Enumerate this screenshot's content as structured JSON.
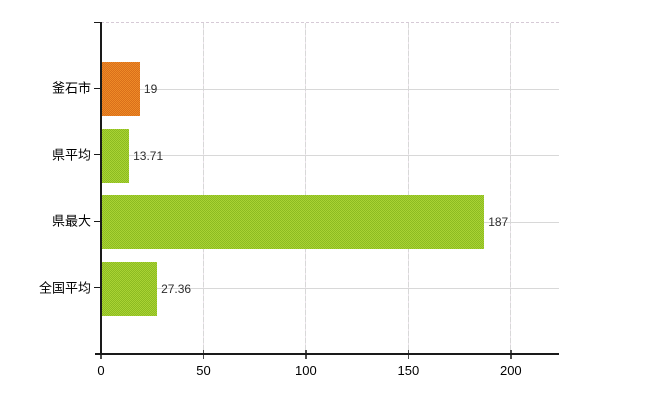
{
  "chart_data": {
    "type": "bar",
    "orientation": "horizontal",
    "title": "",
    "categories": [
      "釜石市",
      "県平均",
      "県最大",
      "全国平均"
    ],
    "values": [
      19,
      13.71,
      187,
      27.36
    ],
    "value_labels": [
      "19",
      "13.71",
      "187",
      "27.36"
    ],
    "bar_colors": [
      {
        "main": "#ee8a26",
        "dot": "#d96f1b"
      },
      {
        "main": "#a9d334",
        "dot": "#8cbb21"
      },
      {
        "main": "#a9d334",
        "dot": "#8cbb21"
      },
      {
        "main": "#a9d334",
        "dot": "#8cbb21"
      }
    ],
    "xlim": [
      0,
      223.5
    ],
    "xticks": [
      0,
      50,
      100,
      150,
      200
    ],
    "xtick_labels": [
      "0",
      "50",
      "100",
      "150",
      "200"
    ],
    "grid": true,
    "legend": false
  },
  "colors": {
    "background": "#ffffff",
    "axis": "#1a1a1a",
    "tick": "#4d4d4d",
    "gridline": "#d8d8d8",
    "gridline_dash_alt": "#ece4ec",
    "plot_border_dash": "#d6cad6",
    "category_text": "#000000",
    "tick_text": "#000000",
    "value_text": "#2e2e2e"
  }
}
